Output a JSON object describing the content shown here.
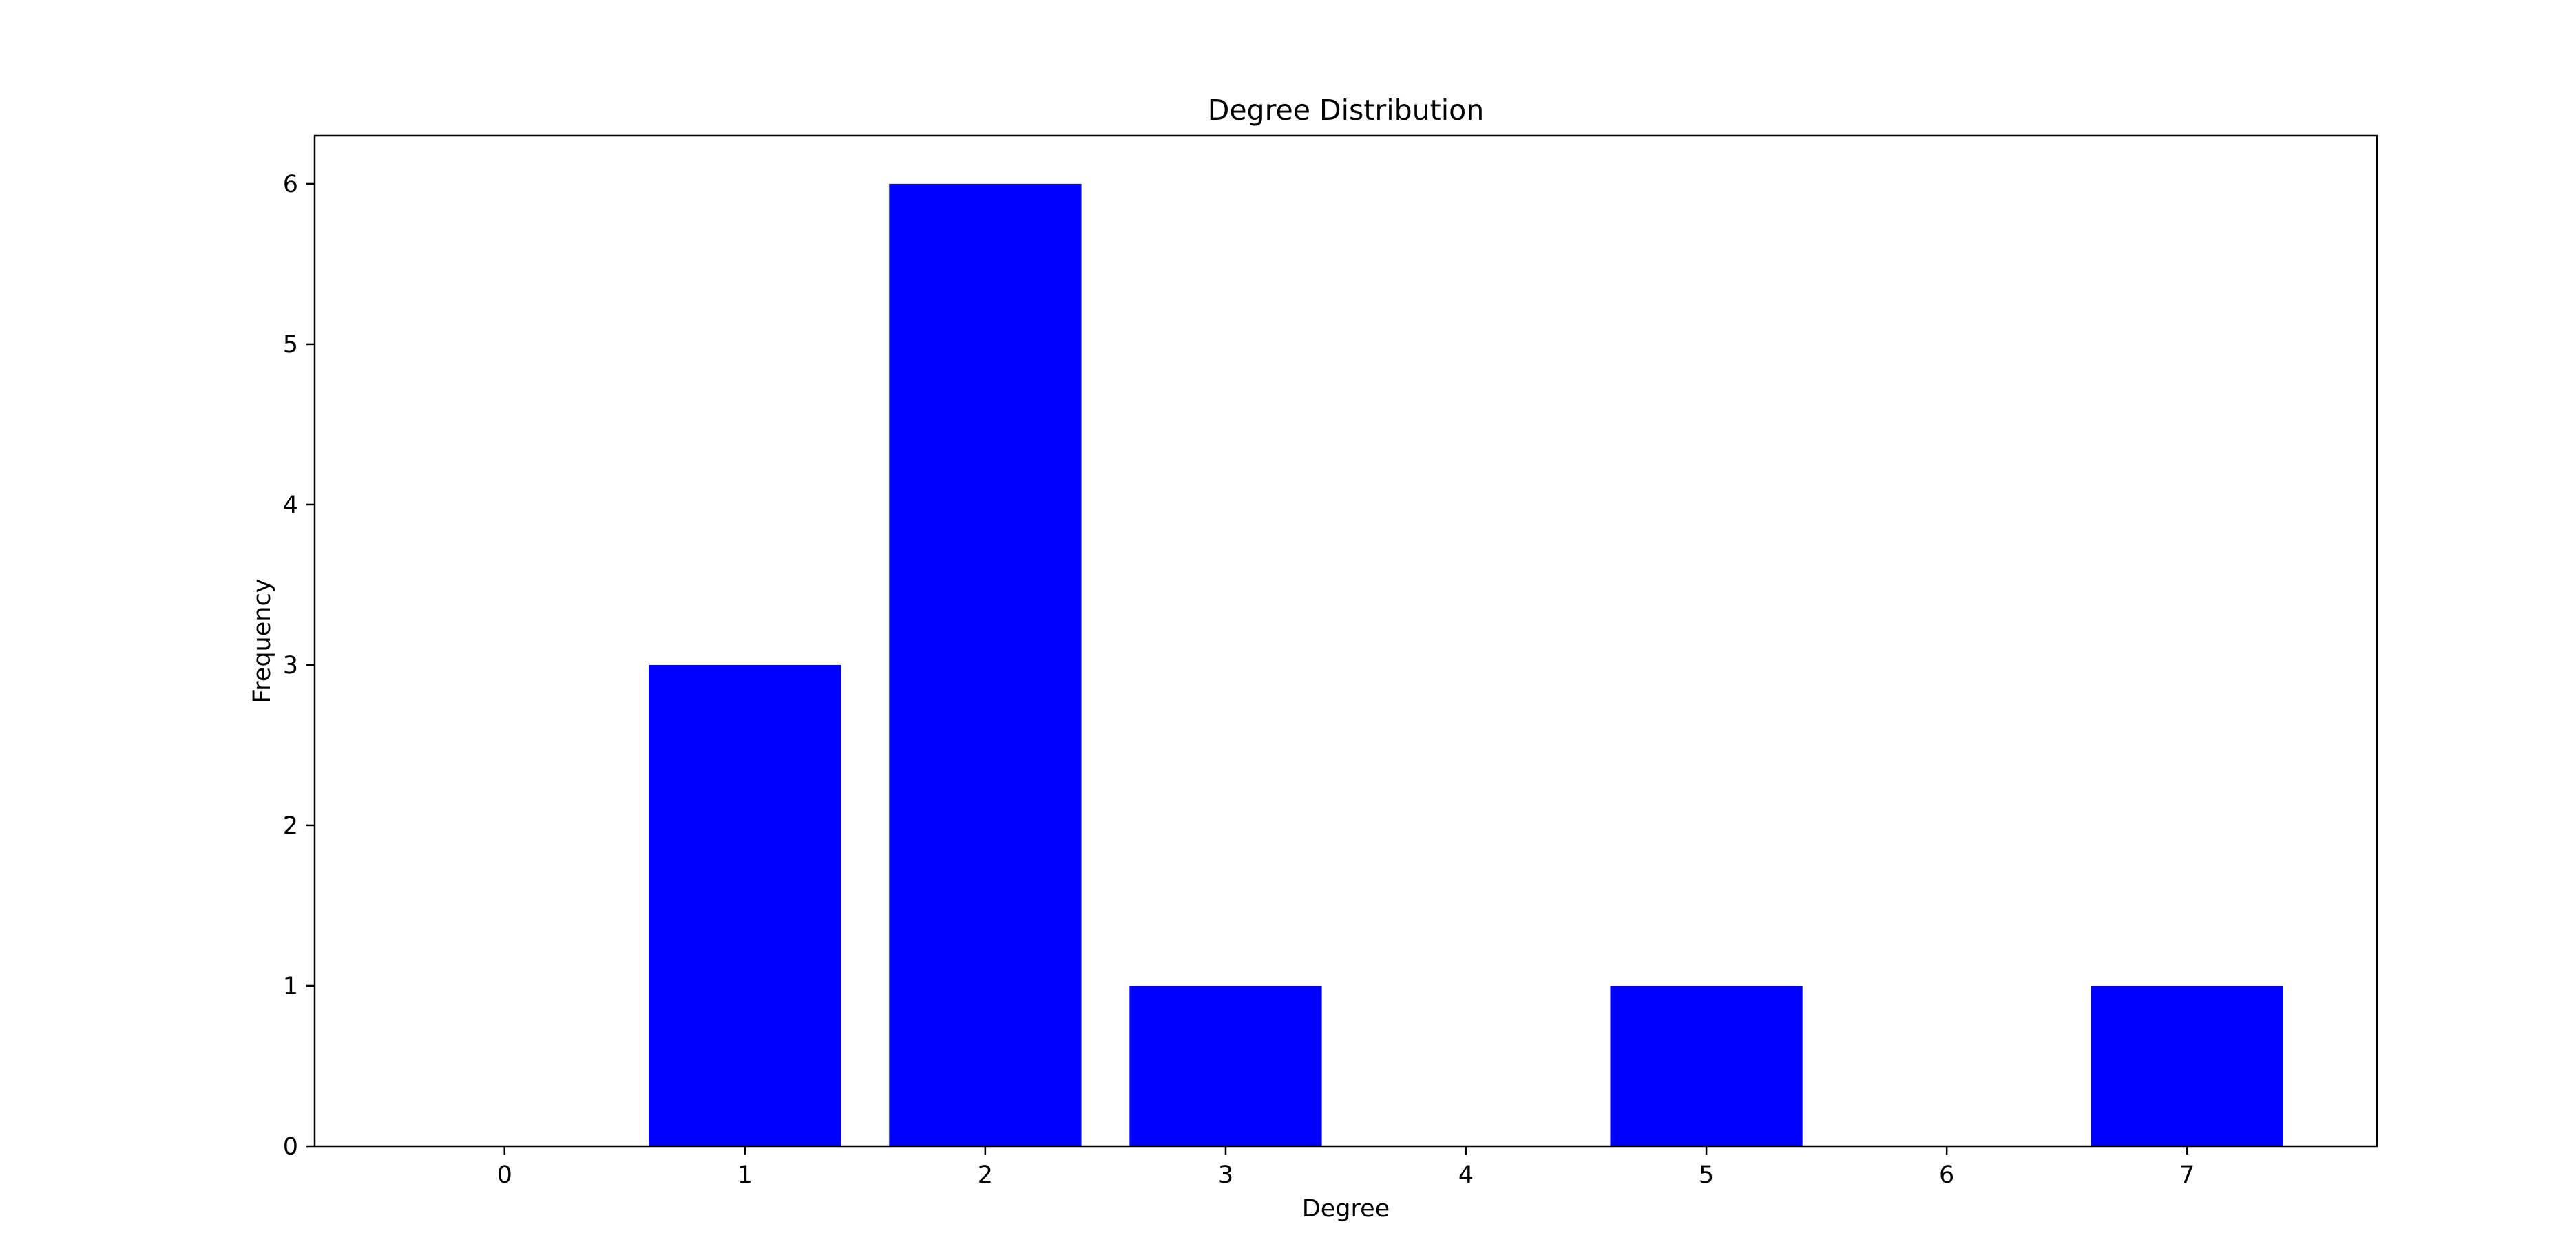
{
  "chart_data": {
    "type": "bar",
    "title": "Degree Distribution",
    "xlabel": "Degree",
    "ylabel": "Frequency",
    "categories": [
      0,
      1,
      2,
      3,
      4,
      5,
      6,
      7
    ],
    "values": [
      0,
      3,
      6,
      1,
      0,
      1,
      0,
      1
    ],
    "x_ticks": [
      "0",
      "1",
      "2",
      "3",
      "4",
      "5",
      "6",
      "7"
    ],
    "y_ticks": [
      "0",
      "1",
      "2",
      "3",
      "4",
      "5",
      "6"
    ],
    "xlim": [
      -0.79,
      7.79
    ],
    "ylim": [
      0,
      6.3
    ],
    "grid": false,
    "bar_color": "#0000ff"
  }
}
